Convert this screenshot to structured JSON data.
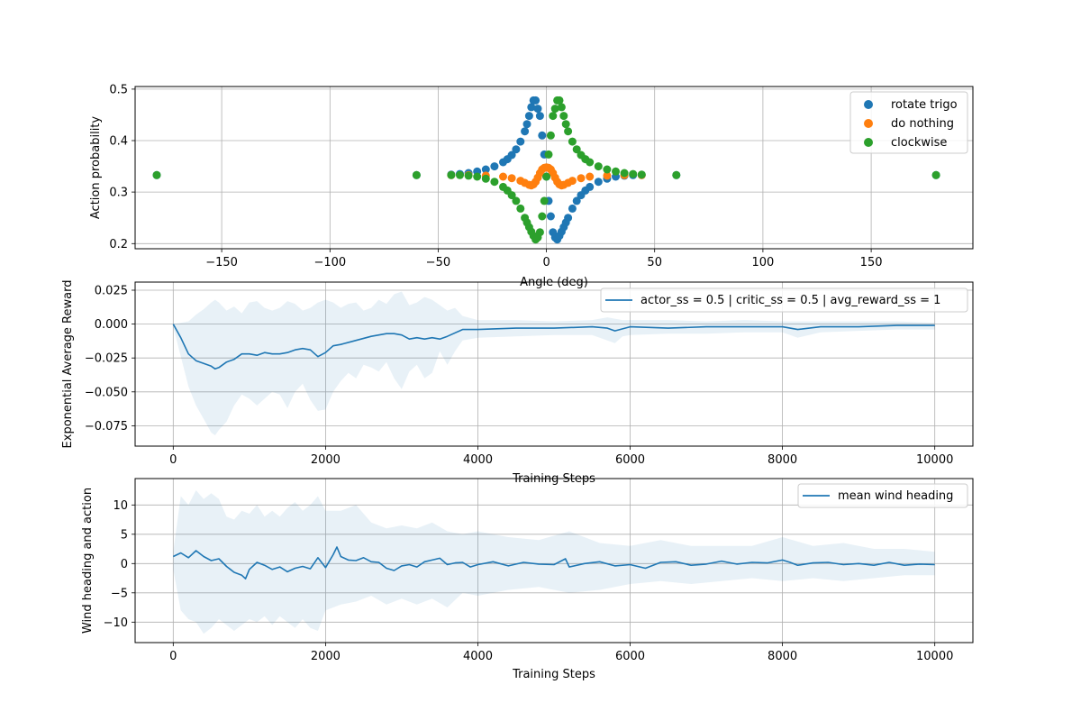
{
  "chart_data": [
    {
      "type": "scatter",
      "title": "",
      "xlabel": "Angle (deg)",
      "ylabel": "Action probability",
      "xlim": [
        -190,
        197
      ],
      "ylim": [
        0.19,
        0.505
      ],
      "xticks": [
        -150,
        -100,
        -50,
        0,
        50,
        100,
        150
      ],
      "xtick_labels": [
        "−150",
        "−100",
        "−50",
        "0",
        "50",
        "100",
        "150"
      ],
      "yticks": [
        0.2,
        0.3,
        0.4,
        0.5
      ],
      "ytick_labels": [
        "0.2",
        "0.3",
        "0.4",
        "0.5"
      ],
      "grid": true,
      "legend_position": "upper right",
      "series": [
        {
          "name": "rotate trigo",
          "color": "#1f77b4",
          "x": [
            -180,
            -60,
            -44,
            -40,
            -36,
            -32,
            -28,
            -24,
            -20,
            -18,
            -16,
            -14,
            -12,
            -10,
            -9,
            -8,
            -7,
            -6,
            -5,
            -4,
            -3,
            -2,
            -1,
            0,
            1,
            2,
            3,
            4,
            5,
            6,
            7,
            8,
            9,
            10,
            12,
            14,
            16,
            18,
            20,
            24,
            28,
            32,
            36,
            40,
            44,
            60,
            180
          ],
          "y": [
            0.333,
            0.333,
            0.334,
            0.335,
            0.337,
            0.34,
            0.344,
            0.35,
            0.358,
            0.364,
            0.372,
            0.383,
            0.398,
            0.418,
            0.432,
            0.448,
            0.465,
            0.478,
            0.478,
            0.462,
            0.448,
            0.41,
            0.373,
            0.33,
            0.283,
            0.253,
            0.222,
            0.212,
            0.208,
            0.215,
            0.223,
            0.232,
            0.241,
            0.25,
            0.268,
            0.283,
            0.294,
            0.303,
            0.31,
            0.32,
            0.326,
            0.33,
            0.332,
            0.333,
            0.333,
            0.333,
            0.333
          ]
        },
        {
          "name": "do nothing",
          "color": "#ff7f0e",
          "x": [
            -44,
            -36,
            -28,
            -20,
            -16,
            -12,
            -10,
            -8,
            -7,
            -6,
            -5,
            -4,
            -3,
            -2,
            -1,
            0,
            1,
            2,
            3,
            4,
            5,
            6,
            7,
            8,
            10,
            12,
            16,
            20,
            28,
            36,
            44
          ],
          "y": [
            0.333,
            0.333,
            0.332,
            0.33,
            0.327,
            0.322,
            0.318,
            0.314,
            0.313,
            0.315,
            0.32,
            0.328,
            0.337,
            0.344,
            0.347,
            0.348,
            0.347,
            0.344,
            0.337,
            0.328,
            0.32,
            0.315,
            0.313,
            0.314,
            0.318,
            0.322,
            0.327,
            0.33,
            0.332,
            0.333,
            0.333
          ]
        },
        {
          "name": "clockwise",
          "color": "#2ca02c",
          "x": [
            -180,
            -60,
            -44,
            -40,
            -36,
            -32,
            -28,
            -24,
            -20,
            -18,
            -16,
            -14,
            -12,
            -10,
            -9,
            -8,
            -7,
            -6,
            -5,
            -4,
            -3,
            -2,
            -1,
            0,
            1,
            2,
            3,
            4,
            5,
            6,
            7,
            8,
            9,
            10,
            12,
            14,
            16,
            18,
            20,
            24,
            28,
            32,
            36,
            40,
            44,
            60,
            180
          ],
          "y": [
            0.333,
            0.333,
            0.333,
            0.333,
            0.332,
            0.33,
            0.326,
            0.32,
            0.31,
            0.303,
            0.294,
            0.283,
            0.268,
            0.25,
            0.241,
            0.232,
            0.223,
            0.215,
            0.208,
            0.212,
            0.222,
            0.253,
            0.283,
            0.33,
            0.373,
            0.41,
            0.448,
            0.462,
            0.478,
            0.478,
            0.465,
            0.448,
            0.432,
            0.418,
            0.398,
            0.383,
            0.372,
            0.364,
            0.358,
            0.35,
            0.344,
            0.34,
            0.337,
            0.335,
            0.334,
            0.333,
            0.333
          ]
        }
      ]
    },
    {
      "type": "line",
      "title": "",
      "xlabel": "Training Steps",
      "ylabel": "Exponential Average Reward",
      "xlim": [
        -500,
        10500
      ],
      "ylim": [
        -0.09,
        0.031
      ],
      "xticks": [
        0,
        2000,
        4000,
        6000,
        8000,
        10000
      ],
      "xtick_labels": [
        "0",
        "2000",
        "4000",
        "6000",
        "8000",
        "10000"
      ],
      "yticks": [
        -0.075,
        -0.05,
        -0.025,
        0.0,
        0.025
      ],
      "ytick_labels": [
        "−0.075",
        "−0.050",
        "−0.025",
        "0.000",
        "0.025"
      ],
      "grid": true,
      "legend_position": "upper right",
      "series": [
        {
          "name": "actor_ss = 0.5 | critic_ss = 0.5 | avg_reward_ss = 1",
          "color": "#1f77b4",
          "x": [
            0,
            100,
            200,
            300,
            400,
            500,
            550,
            600,
            700,
            800,
            900,
            1000,
            1100,
            1200,
            1300,
            1400,
            1500,
            1600,
            1700,
            1800,
            1900,
            2000,
            2100,
            2200,
            2400,
            2600,
            2800,
            2900,
            3000,
            3100,
            3200,
            3300,
            3400,
            3500,
            3600,
            3800,
            4000,
            4500,
            5000,
            5500,
            5700,
            5800,
            6000,
            6500,
            7000,
            7500,
            8000,
            8200,
            8500,
            9000,
            9500,
            10000
          ],
          "y": [
            0.0,
            -0.01,
            -0.022,
            -0.027,
            -0.029,
            -0.031,
            -0.033,
            -0.032,
            -0.028,
            -0.026,
            -0.022,
            -0.022,
            -0.023,
            -0.021,
            -0.022,
            -0.022,
            -0.021,
            -0.019,
            -0.018,
            -0.019,
            -0.024,
            -0.021,
            -0.016,
            -0.015,
            -0.012,
            -0.009,
            -0.007,
            -0.007,
            -0.008,
            -0.011,
            -0.01,
            -0.011,
            -0.01,
            -0.011,
            -0.009,
            -0.004,
            -0.004,
            -0.003,
            -0.003,
            -0.002,
            -0.003,
            -0.005,
            -0.002,
            -0.003,
            -0.002,
            -0.002,
            -0.002,
            -0.004,
            -0.002,
            -0.002,
            -0.001,
            -0.001
          ]
        }
      ],
      "band": {
        "x": [
          0,
          200,
          300,
          400,
          500,
          550,
          600,
          700,
          800,
          900,
          1000,
          1100,
          1200,
          1300,
          1400,
          1500,
          1600,
          1700,
          1800,
          1900,
          2000,
          2100,
          2200,
          2300,
          2400,
          2500,
          2600,
          2700,
          2800,
          2900,
          3000,
          3100,
          3200,
          3300,
          3400,
          3500,
          3600,
          3700,
          3800,
          4000,
          4500,
          5000,
          5500,
          5700,
          5800,
          5900,
          6000,
          6500,
          7000,
          7500,
          8000,
          8200,
          8500,
          9000,
          9500,
          10000
        ],
        "upper": [
          0.0,
          0.002,
          0.007,
          0.011,
          0.016,
          0.018,
          0.016,
          0.01,
          0.013,
          0.008,
          0.016,
          0.017,
          0.012,
          0.01,
          0.012,
          0.017,
          0.015,
          0.01,
          0.012,
          0.016,
          0.018,
          0.016,
          0.012,
          0.015,
          0.016,
          0.01,
          0.012,
          0.018,
          0.015,
          0.022,
          0.024,
          0.014,
          0.016,
          0.02,
          0.018,
          0.014,
          0.01,
          0.012,
          0.006,
          0.003,
          0.003,
          0.002,
          0.003,
          0.005,
          0.004,
          0.003,
          0.003,
          0.003,
          0.002,
          0.003,
          0.002,
          0.002,
          0.002,
          0.002,
          0.002,
          0.001
        ],
        "lower": [
          -0.002,
          -0.046,
          -0.06,
          -0.07,
          -0.08,
          -0.082,
          -0.078,
          -0.072,
          -0.06,
          -0.052,
          -0.055,
          -0.06,
          -0.055,
          -0.05,
          -0.052,
          -0.062,
          -0.05,
          -0.044,
          -0.056,
          -0.064,
          -0.063,
          -0.05,
          -0.042,
          -0.036,
          -0.04,
          -0.03,
          -0.032,
          -0.035,
          -0.028,
          -0.04,
          -0.048,
          -0.035,
          -0.03,
          -0.04,
          -0.036,
          -0.02,
          -0.03,
          -0.02,
          -0.012,
          -0.01,
          -0.009,
          -0.008,
          -0.008,
          -0.012,
          -0.014,
          -0.009,
          -0.008,
          -0.007,
          -0.007,
          -0.006,
          -0.006,
          -0.01,
          -0.006,
          -0.005,
          -0.004,
          -0.004
        ]
      }
    },
    {
      "type": "line",
      "title": "",
      "xlabel": "Training Steps",
      "ylabel": "Wind heading and action",
      "xlim": [
        -500,
        10500
      ],
      "ylim": [
        -13.5,
        14.5
      ],
      "xticks": [
        0,
        2000,
        4000,
        6000,
        8000,
        10000
      ],
      "xtick_labels": [
        "0",
        "2000",
        "4000",
        "6000",
        "8000",
        "10000"
      ],
      "yticks": [
        -10,
        -5,
        0,
        5,
        10
      ],
      "ytick_labels": [
        "−10",
        "−5",
        "0",
        "5",
        "10"
      ],
      "grid": true,
      "legend_position": "upper right",
      "series": [
        {
          "name": "mean wind heading",
          "color": "#1f77b4",
          "x": [
            0,
            100,
            200,
            300,
            400,
            500,
            600,
            700,
            800,
            900,
            950,
            1000,
            1100,
            1200,
            1300,
            1400,
            1500,
            1600,
            1700,
            1800,
            1900,
            2000,
            2100,
            2150,
            2200,
            2300,
            2400,
            2500,
            2600,
            2700,
            2800,
            2900,
            3000,
            3100,
            3200,
            3300,
            3400,
            3500,
            3600,
            3700,
            3800,
            3900,
            4000,
            4200,
            4400,
            4600,
            4800,
            5000,
            5150,
            5200,
            5400,
            5600,
            5800,
            6000,
            6200,
            6400,
            6600,
            6800,
            7000,
            7200,
            7400,
            7600,
            7800,
            8000,
            8100,
            8200,
            8400,
            8600,
            8800,
            9000,
            9200,
            9400,
            9600,
            9800,
            10000
          ],
          "y": [
            1.2,
            1.8,
            1.0,
            2.2,
            1.2,
            0.5,
            0.8,
            -0.5,
            -1.5,
            -2.0,
            -2.6,
            -1.0,
            0.2,
            -0.3,
            -1.0,
            -0.6,
            -1.4,
            -0.8,
            -0.5,
            -0.9,
            1.0,
            -0.7,
            1.5,
            2.8,
            1.2,
            0.6,
            0.5,
            1.0,
            0.3,
            0.2,
            -0.8,
            -1.2,
            -0.4,
            -0.2,
            -0.6,
            0.3,
            0.6,
            0.9,
            -0.2,
            0.1,
            0.2,
            -0.6,
            -0.2,
            0.3,
            -0.4,
            0.2,
            -0.1,
            -0.2,
            0.8,
            -0.6,
            0.0,
            0.3,
            -0.4,
            -0.2,
            -0.8,
            0.2,
            0.3,
            -0.3,
            -0.1,
            0.4,
            -0.1,
            0.2,
            0.1,
            0.6,
            0.2,
            -0.3,
            0.1,
            0.2,
            -0.2,
            0.0,
            -0.3,
            0.2,
            -0.3,
            -0.1,
            -0.2
          ]
        }
      ],
      "band": {
        "x": [
          0,
          100,
          200,
          300,
          400,
          500,
          600,
          700,
          800,
          900,
          1000,
          1100,
          1200,
          1300,
          1400,
          1500,
          1600,
          1700,
          1800,
          1900,
          2000,
          2200,
          2400,
          2600,
          2800,
          3000,
          3200,
          3400,
          3600,
          3800,
          4000,
          4400,
          4800,
          5200,
          5600,
          6000,
          6400,
          6800,
          7200,
          7600,
          8000,
          8400,
          8800,
          9200,
          9600,
          10000
        ],
        "upper": [
          2.0,
          11.5,
          10.0,
          12.5,
          11.0,
          12.0,
          11.0,
          8.0,
          7.5,
          9.0,
          8.5,
          10.0,
          8.0,
          9.0,
          8.0,
          9.5,
          10.5,
          9.0,
          10.0,
          11.5,
          9.0,
          9.0,
          10.0,
          7.0,
          6.0,
          6.5,
          6.0,
          7.0,
          5.5,
          5.0,
          5.5,
          4.5,
          4.0,
          5.5,
          3.5,
          3.0,
          4.0,
          3.0,
          3.0,
          3.0,
          4.5,
          3.0,
          3.5,
          2.5,
          2.5,
          2.0
        ],
        "lower": [
          -1.0,
          -8.0,
          -9.5,
          -10.0,
          -12.0,
          -11.0,
          -9.5,
          -10.5,
          -11.5,
          -10.5,
          -9.5,
          -10.0,
          -9.0,
          -10.5,
          -9.0,
          -10.0,
          -11.0,
          -9.5,
          -11.0,
          -11.5,
          -8.0,
          -7.0,
          -6.5,
          -5.5,
          -7.0,
          -6.0,
          -7.0,
          -6.0,
          -7.5,
          -5.0,
          -5.5,
          -4.5,
          -4.0,
          -5.0,
          -4.5,
          -3.5,
          -3.0,
          -3.5,
          -3.0,
          -2.5,
          -3.0,
          -2.5,
          -3.0,
          -2.5,
          -2.0,
          -2.0
        ]
      }
    }
  ]
}
